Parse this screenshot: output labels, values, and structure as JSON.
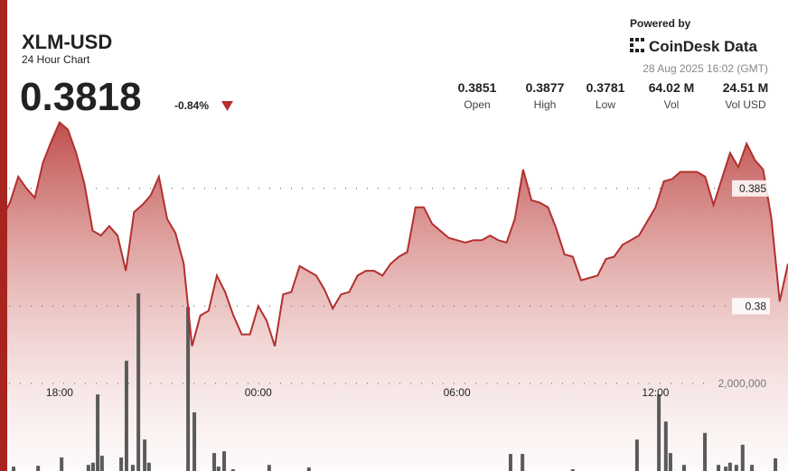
{
  "header": {
    "title": "XLM-USD",
    "subtitle": "24 Hour Chart",
    "price": "0.3818",
    "change": "-0.84%",
    "powered": "Powered by",
    "brand": "CoinDesk Data",
    "timestamp": "28 Aug 2025 16:02 (GMT)",
    "stats": [
      {
        "value": "0.3851",
        "label": "Open"
      },
      {
        "value": "0.3877",
        "label": "High"
      },
      {
        "value": "0.3781",
        "label": "Low"
      },
      {
        "value": "64.02 M",
        "label": "Vol"
      },
      {
        "value": "24.51 M",
        "label": "Vol USD"
      }
    ]
  },
  "chart_data": {
    "type": "area",
    "xlim": [
      16.2,
      40
    ],
    "xticks": [
      {
        "value": 18,
        "label": "18:00"
      },
      {
        "value": 24,
        "label": "00:00"
      },
      {
        "value": 30,
        "label": "06:00"
      },
      {
        "value": 36,
        "label": "12:00"
      }
    ],
    "ylim": [
      0.373,
      0.393
    ],
    "yticks": [
      0.38,
      0.385
    ],
    "y2lim": [
      0,
      10000000
    ],
    "y2ticks": [
      {
        "value": 2000000,
        "label": "2,000,000"
      }
    ],
    "grid": true,
    "price": {
      "color": "#b3302e",
      "x": [
        16.25,
        16.5,
        16.75,
        17,
        17.25,
        17.5,
        17.75,
        18,
        18.25,
        18.5,
        18.75,
        19,
        19.25,
        19.5,
        19.75,
        20,
        20.25,
        20.5,
        20.75,
        21,
        21.25,
        21.5,
        21.75,
        22,
        22.25,
        22.5,
        22.75,
        23,
        23.25,
        23.5,
        23.75,
        24,
        24.25,
        24.5,
        24.75,
        25,
        25.25,
        25.5,
        25.75,
        26,
        26.25,
        26.5,
        26.75,
        27,
        27.25,
        27.5,
        27.75,
        28,
        28.25,
        28.5,
        28.75,
        29,
        29.25,
        29.5,
        29.75,
        30,
        30.25,
        30.5,
        30.75,
        31,
        31.25,
        31.5,
        31.75,
        32,
        32.25,
        32.5,
        32.75,
        33,
        33.25,
        33.5,
        33.75,
        34,
        34.25,
        34.5,
        34.75,
        35,
        35.25,
        35.5,
        35.75,
        36,
        36.25,
        36.5,
        36.75,
        37,
        37.25,
        37.5,
        37.75,
        38,
        38.25,
        38.5,
        38.75,
        39,
        39.25,
        39.5,
        39.75,
        40
      ],
      "values": [
        0.3837,
        0.3844,
        0.3855,
        0.385,
        0.3846,
        0.3861,
        0.387,
        0.3878,
        0.3875,
        0.3865,
        0.3852,
        0.3832,
        0.383,
        0.3834,
        0.383,
        0.3815,
        0.384,
        0.3843,
        0.3847,
        0.3855,
        0.3837,
        0.3831,
        0.3818,
        0.3783,
        0.3796,
        0.3798,
        0.3813,
        0.3806,
        0.3796,
        0.3788,
        0.3788,
        0.38,
        0.3794,
        0.3783,
        0.3805,
        0.3806,
        0.3817,
        0.3815,
        0.3813,
        0.3807,
        0.3799,
        0.3805,
        0.3806,
        0.3813,
        0.3815,
        0.3815,
        0.3813,
        0.3818,
        0.3821,
        0.3823,
        0.3842,
        0.3842,
        0.3835,
        0.3832,
        0.3829,
        0.3828,
        0.3827,
        0.3828,
        0.3828,
        0.383,
        0.3828,
        0.3827,
        0.3837,
        0.3858,
        0.3845,
        0.3844,
        0.3842,
        0.3833,
        0.3822,
        0.3821,
        0.3811,
        0.3812,
        0.3813,
        0.382,
        0.3821,
        0.3826,
        0.3828,
        0.383,
        0.3836,
        0.3842,
        0.3853,
        0.3854,
        0.3857,
        0.3857,
        0.3857,
        0.3855,
        0.3843,
        0.3854,
        0.3865,
        0.3859,
        0.3869,
        0.3862,
        0.3858,
        0.3837,
        0.3802,
        0.3818
      ]
    },
    "volume": {
      "color": "#5a5a5a",
      "x": [
        16.61,
        17.35,
        18.06,
        18.87,
        19.01,
        19.15,
        19.28,
        19.86,
        20.02,
        20.21,
        20.38,
        20.57,
        20.7,
        21.88,
        22.07,
        22.67,
        22.8,
        22.97,
        23.24,
        24.33,
        25.53,
        31.62,
        31.98,
        33.5,
        35.44,
        36.1,
        36.31,
        36.45,
        36.86,
        37.49,
        37.9,
        38.12,
        38.25,
        38.44,
        38.63,
        38.91,
        39.62
      ],
      "values": [
        100000,
        120000,
        310000,
        140000,
        190000,
        1750000,
        350000,
        310000,
        2520000,
        140000,
        4060000,
        720000,
        190000,
        3750000,
        1340000,
        410000,
        100000,
        450000,
        40000,
        140000,
        80000,
        390000,
        390000,
        40000,
        720000,
        1750000,
        1130000,
        410000,
        140000,
        870000,
        140000,
        100000,
        190000,
        140000,
        600000,
        140000,
        290000
      ]
    }
  }
}
